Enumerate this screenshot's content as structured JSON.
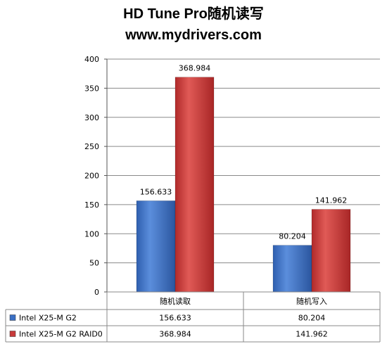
{
  "chart_data": {
    "type": "bar",
    "title": "HD Tune Pro随机读写",
    "subtitle": "www.mydrivers.com",
    "categories": [
      "随机读取",
      "随机写入"
    ],
    "series": [
      {
        "name": "Intel X25-M G2",
        "values": [
          156.633,
          80.204
        ],
        "color": "#3A6FC4"
      },
      {
        "name": "Intel X25-M G2  RAID0",
        "values": [
          368.984,
          141.962
        ],
        "color": "#C83A3A"
      }
    ],
    "value_labels": [
      [
        "156.633",
        "80.204"
      ],
      [
        "368.984",
        "141.962"
      ]
    ],
    "ylim": [
      0,
      400
    ],
    "yticks": [
      "0",
      "50",
      "100",
      "150",
      "200",
      "250",
      "300",
      "350",
      "400"
    ],
    "grid": true,
    "legend": "data-table"
  }
}
